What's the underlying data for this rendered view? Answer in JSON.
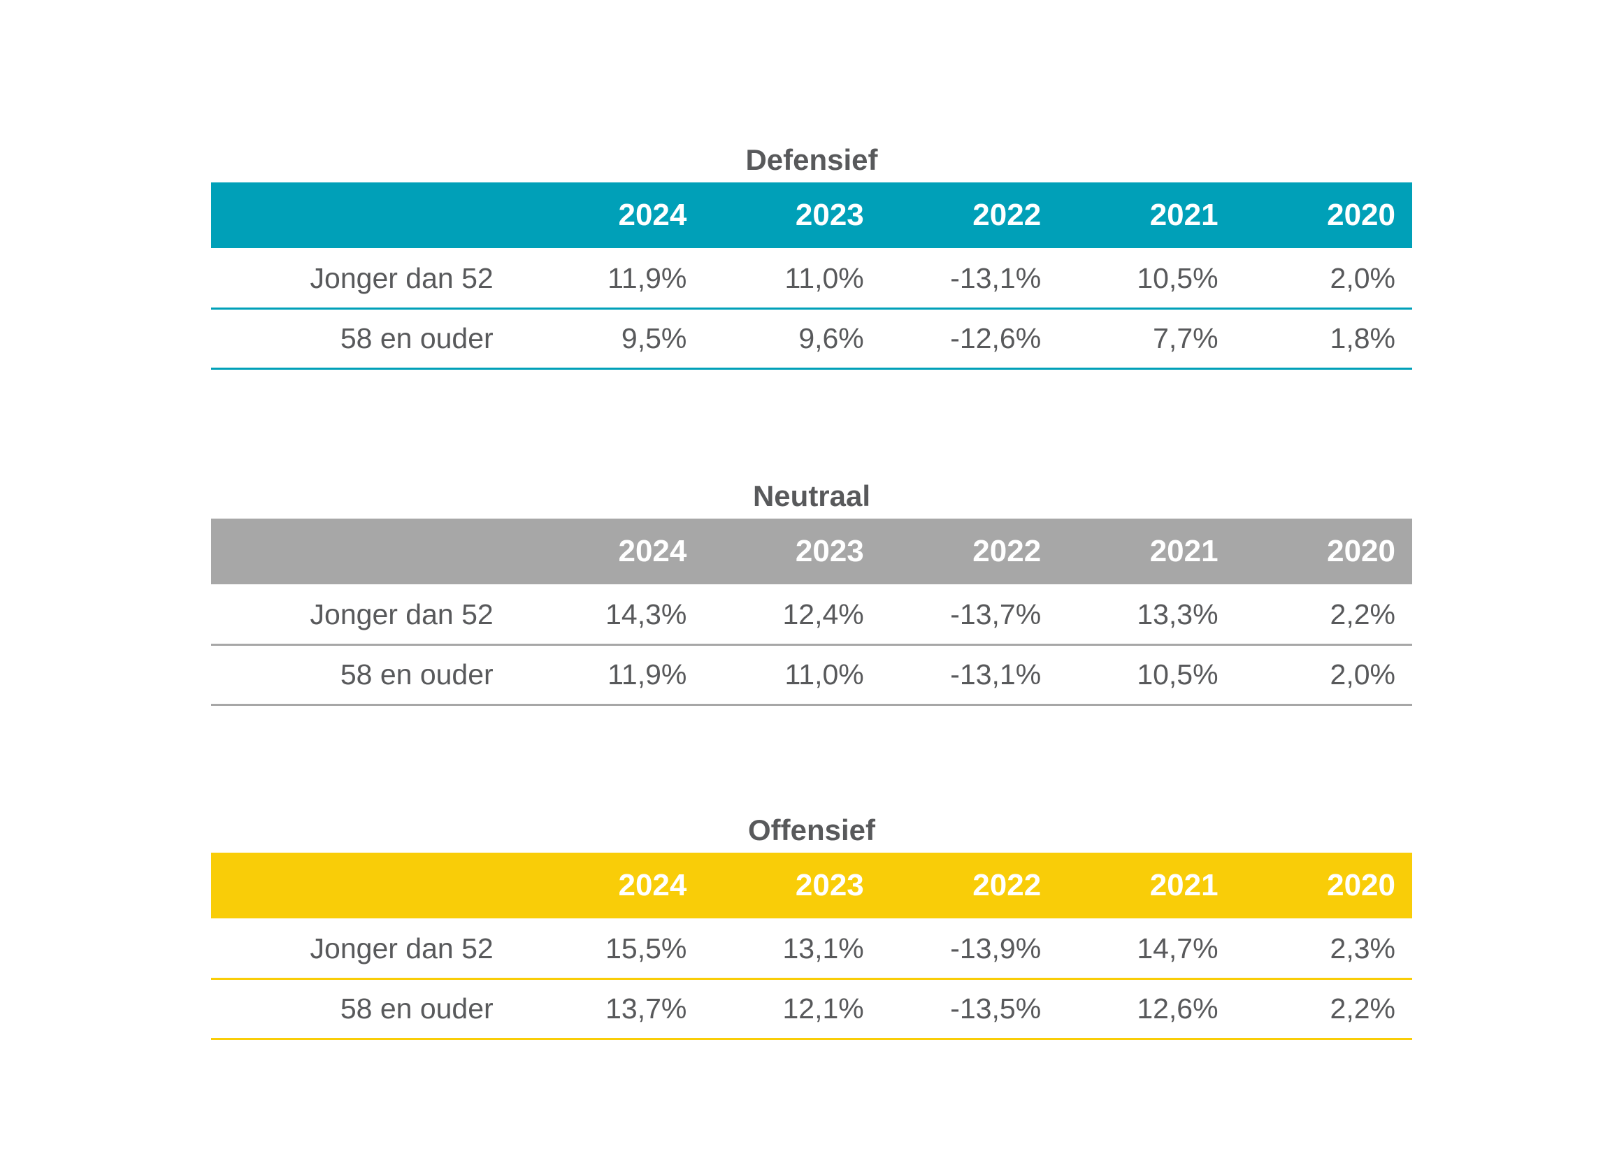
{
  "chart_data": [
    {
      "type": "table",
      "title": "Defensief",
      "accent_color": "#00a0b8",
      "columns": [
        "2024",
        "2023",
        "2022",
        "2021",
        "2020"
      ],
      "rows": [
        {
          "label": "Jonger dan 52",
          "values": [
            "11,9%",
            "11,0%",
            "-13,1%",
            "10,5%",
            "2,0%"
          ]
        },
        {
          "label": "58 en ouder",
          "values": [
            "9,5%",
            "9,6%",
            "-12,6%",
            "7,7%",
            "1,8%"
          ]
        }
      ]
    },
    {
      "type": "table",
      "title": "Neutraal",
      "accent_color": "#a7a7a7",
      "columns": [
        "2024",
        "2023",
        "2022",
        "2021",
        "2020"
      ],
      "rows": [
        {
          "label": "Jonger dan 52",
          "values": [
            "14,3%",
            "12,4%",
            "-13,7%",
            "13,3%",
            "2,2%"
          ]
        },
        {
          "label": "58 en ouder",
          "values": [
            "11,9%",
            "11,0%",
            "-13,1%",
            "10,5%",
            "2,0%"
          ]
        }
      ]
    },
    {
      "type": "table",
      "title": "Offensief",
      "accent_color": "#f9cd08",
      "columns": [
        "2024",
        "2023",
        "2022",
        "2021",
        "2020"
      ],
      "rows": [
        {
          "label": "Jonger dan 52",
          "values": [
            "15,5%",
            "13,1%",
            "-13,9%",
            "14,7%",
            "2,3%"
          ]
        },
        {
          "label": "58 en ouder",
          "values": [
            "13,7%",
            "12,1%",
            "-13,5%",
            "12,6%",
            "2,2%"
          ]
        }
      ]
    }
  ]
}
